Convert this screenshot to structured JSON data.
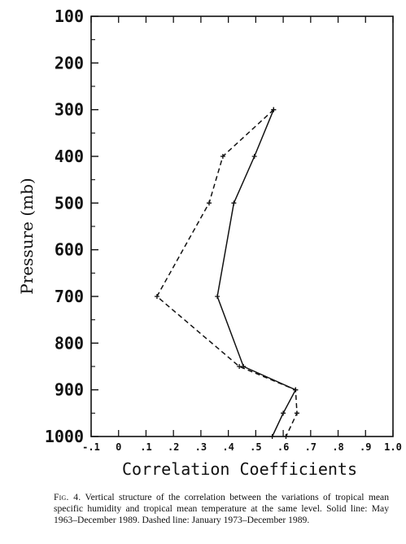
{
  "chart_data": {
    "type": "line",
    "title": "",
    "xlabel": "Correlation Coefficients",
    "ylabel": "Pressure (mb)",
    "xlim": [
      -0.1,
      1.0
    ],
    "ylim": [
      1000,
      100
    ],
    "y_inverted": true,
    "grid": false,
    "xticks": [
      -0.1,
      0.0,
      0.1,
      0.2,
      0.3,
      0.4,
      0.5,
      0.6,
      0.7,
      0.8,
      0.9,
      1.0
    ],
    "xtick_labels": [
      "-.1",
      "0",
      ".1",
      ".2",
      ".3",
      ".4",
      ".5",
      ".6",
      ".7",
      ".8",
      ".9",
      "1.0"
    ],
    "yticks": [
      100,
      200,
      300,
      400,
      500,
      600,
      700,
      800,
      900,
      1000
    ],
    "ytick_labels": [
      "100",
      "200",
      "300",
      "400",
      "500",
      "600",
      "700",
      "800",
      "900",
      "1000"
    ],
    "series": [
      {
        "style": "solid",
        "x": [
          0.565,
          0.495,
          0.42,
          0.36,
          0.455,
          0.645,
          0.6,
          0.56
        ],
        "y": [
          300,
          400,
          500,
          700,
          850,
          900,
          950,
          1000
        ]
      },
      {
        "style": "dashed",
        "x": [
          0.565,
          0.38,
          0.33,
          0.14,
          0.44,
          0.645,
          0.65,
          0.61
        ],
        "y": [
          300,
          400,
          500,
          700,
          850,
          900,
          950,
          1000
        ]
      }
    ]
  },
  "caption": {
    "fig_label": "Fig. 4.",
    "text": "Vertical structure of the correlation between the variations of tropical mean specific humidity and tropical mean temperature at the same level. Solid line: May 1963–December 1989. Dashed line: January 1973–December 1989."
  }
}
